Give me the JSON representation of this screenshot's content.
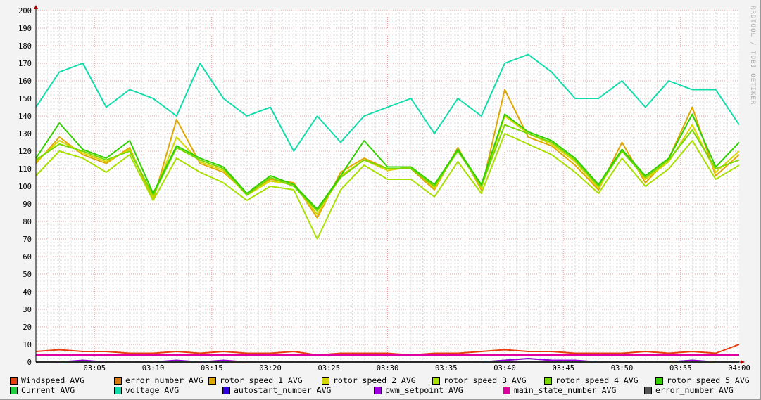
{
  "watermark": "RRDTOOL / TOBI OETIKER",
  "chart_data": {
    "type": "line",
    "ylim": [
      0,
      200
    ],
    "yticks": [
      0,
      10,
      20,
      30,
      40,
      50,
      60,
      70,
      80,
      90,
      100,
      110,
      120,
      130,
      140,
      150,
      160,
      170,
      180,
      190,
      200
    ],
    "xlim": [
      "03:00",
      "04:00"
    ],
    "xticks": [
      "03:05",
      "03:10",
      "03:15",
      "03:20",
      "03:25",
      "03:30",
      "03:35",
      "03:40",
      "03:45",
      "03:50",
      "03:55",
      "04:00"
    ],
    "grid": true,
    "legend_placement": "bottom",
    "x_minutes": [
      0,
      2,
      4,
      6,
      8,
      10,
      12,
      14,
      16,
      18,
      20,
      22,
      24,
      26,
      28,
      30,
      32,
      34,
      36,
      38,
      40,
      42,
      44,
      46,
      48,
      50,
      52,
      54,
      56,
      58,
      60
    ],
    "series": [
      {
        "name": "Windspeed AVG",
        "color": "#e8400c",
        "values": [
          6,
          7,
          6,
          6,
          5,
          5,
          6,
          5,
          6,
          5,
          5,
          6,
          4,
          5,
          5,
          5,
          4,
          5,
          5,
          6,
          7,
          6,
          6,
          5,
          5,
          5,
          6,
          5,
          6,
          5,
          10
        ]
      },
      {
        "name": "error_number AVG",
        "color": "#db7a0e",
        "values": [
          4,
          4,
          4,
          4,
          4,
          4,
          4,
          4,
          4,
          4,
          4,
          4,
          4,
          4,
          4,
          4,
          4,
          4,
          4,
          4,
          4,
          4,
          4,
          4,
          4,
          4,
          4,
          4,
          4,
          4,
          4
        ]
      },
      {
        "name": "rotor speed 1 AVG",
        "color": "#dfa800",
        "values": [
          113,
          128,
          118,
          113,
          122,
          92,
          138,
          113,
          108,
          96,
          104,
          102,
          82,
          108,
          116,
          110,
          110,
          98,
          122,
          98,
          155,
          128,
          123,
          112,
          98,
          125,
          102,
          116,
          145,
          106,
          118
        ]
      },
      {
        "name": "rotor speed 2 AVG",
        "color": "#d8d800",
        "values": [
          114,
          126,
          119,
          114,
          121,
          94,
          128,
          114,
          109,
          95,
          103,
          101,
          84,
          106,
          115,
          109,
          111,
          99,
          121,
          99,
          140,
          130,
          124,
          114,
          99,
          121,
          104,
          114,
          135,
          108,
          120
        ]
      },
      {
        "name": "rotor speed 3 AVG",
        "color": "#a8e000",
        "values": [
          106,
          120,
          116,
          108,
          118,
          92,
          116,
          108,
          102,
          92,
          100,
          98,
          70,
          98,
          112,
          104,
          104,
          94,
          114,
          96,
          130,
          124,
          118,
          108,
          96,
          116,
          100,
          110,
          126,
          104,
          112
        ]
      },
      {
        "name": "rotor speed 4 AVG",
        "color": "#78d800",
        "values": [
          115,
          124,
          120,
          115,
          120,
          95,
          122,
          115,
          110,
          95,
          105,
          100,
          86,
          105,
          115,
          110,
          110,
          100,
          120,
          100,
          135,
          130,
          125,
          115,
          100,
          120,
          105,
          115,
          132,
          110,
          115
        ]
      },
      {
        "name": "rotor speed 5 AVG",
        "color": "#30d000",
        "values": [
          116,
          136,
          121,
          116,
          126,
          96,
          123,
          116,
          111,
          96,
          106,
          101,
          87,
          106,
          126,
          111,
          111,
          101,
          121,
          101,
          141,
          131,
          126,
          116,
          101,
          121,
          106,
          116,
          141,
          111,
          125
        ]
      },
      {
        "name": "Current AVG",
        "color": "#20d040",
        "values": [
          0,
          0,
          0,
          0,
          0,
          0,
          0,
          0,
          0,
          0,
          0,
          0,
          0,
          0,
          0,
          0,
          0,
          0,
          0,
          0,
          1,
          2,
          1,
          0,
          0,
          0,
          0,
          0,
          1,
          0,
          0
        ]
      },
      {
        "name": "voltage AVG",
        "color": "#10dcaa",
        "values": [
          145,
          165,
          170,
          145,
          155,
          150,
          140,
          170,
          150,
          140,
          145,
          120,
          140,
          125,
          140,
          145,
          150,
          130,
          150,
          140,
          170,
          175,
          165,
          150,
          150,
          160,
          145,
          160,
          155,
          155,
          135
        ]
      },
      {
        "name": "autostart_number AVG",
        "color": "#3000e0",
        "values": [
          0,
          0,
          0,
          0,
          0,
          0,
          0,
          0,
          0,
          0,
          0,
          0,
          0,
          0,
          0,
          0,
          0,
          0,
          0,
          0,
          0,
          0,
          0,
          0,
          0,
          0,
          0,
          0,
          0,
          0,
          0
        ]
      },
      {
        "name": "pwm_setpoint AVG",
        "color": "#a000e0",
        "values": [
          0,
          0,
          1,
          0,
          0,
          0,
          1,
          0,
          1,
          0,
          0,
          0,
          0,
          0,
          0,
          0,
          0,
          0,
          0,
          0,
          1,
          2,
          1,
          1,
          0,
          0,
          0,
          0,
          1,
          0,
          0
        ]
      },
      {
        "name": "main_state_number AVG",
        "color": "#e000a0",
        "values": [
          4,
          4,
          4,
          4,
          4,
          4,
          4,
          4,
          4,
          4,
          4,
          4,
          4,
          4,
          4,
          4,
          4,
          4,
          4,
          4,
          4,
          4,
          4,
          4,
          4,
          4,
          4,
          4,
          4,
          4,
          4
        ]
      },
      {
        "name": "error_number AVG",
        "color": "#555555",
        "values": [
          0,
          0,
          0,
          0,
          0,
          0,
          0,
          0,
          0,
          0,
          0,
          0,
          0,
          0,
          0,
          0,
          0,
          0,
          0,
          0,
          0,
          0,
          0,
          0,
          0,
          0,
          0,
          0,
          0,
          0,
          0
        ]
      }
    ]
  }
}
